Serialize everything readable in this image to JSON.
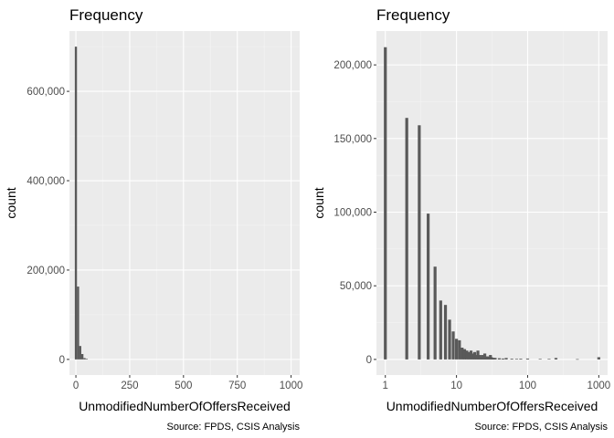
{
  "chart_data": [
    {
      "type": "bar",
      "title": "Frequency",
      "xlabel": "UnmodifiedNumberOfOffersReceived",
      "ylabel": "count",
      "caption": "Source: FPDS, CSIS Analysis",
      "x_scale": "linear",
      "xlim": [
        -30,
        1040
      ],
      "ylim": [
        -35000,
        735000
      ],
      "xticks": [
        0,
        250,
        500,
        750,
        1000
      ],
      "xtick_labels": [
        "0",
        "250",
        "500",
        "750",
        "1000"
      ],
      "yticks": [
        0,
        200000,
        400000,
        600000
      ],
      "ytick_labels": [
        "0",
        "200,000",
        "400,000",
        "600,000"
      ],
      "grid": true,
      "bin_width": 10,
      "x": [
        0,
        10,
        20,
        30,
        40,
        50
      ],
      "values": [
        700000,
        163000,
        30000,
        12000,
        3000,
        1000
      ]
    },
    {
      "type": "bar",
      "title": "Frequency",
      "xlabel": "UnmodifiedNumberOfOffersReceived",
      "ylabel": "count",
      "caption": "Source: FPDS, CSIS Analysis",
      "x_scale": "log",
      "xlim": [
        0.75,
        1330
      ],
      "ylim": [
        -10600,
        223000
      ],
      "xticks": [
        1,
        10,
        100,
        1000
      ],
      "xtick_labels": [
        "1",
        "10",
        "100",
        "1000"
      ],
      "yticks": [
        0,
        50000,
        100000,
        150000,
        200000
      ],
      "ytick_labels": [
        "0",
        "50,000",
        "100,000",
        "150,000",
        "200,000"
      ],
      "grid": true,
      "x": [
        1,
        2,
        3,
        4,
        5,
        6,
        7,
        8,
        9,
        10,
        11,
        12,
        13,
        14,
        15,
        16,
        17,
        18,
        19,
        20,
        21,
        22,
        23,
        24,
        25,
        26,
        27,
        28,
        29,
        30,
        31,
        32,
        33,
        34,
        35,
        40,
        45,
        50,
        60,
        70,
        80,
        100,
        150,
        200,
        250,
        500,
        1000
      ],
      "values": [
        212000,
        164000,
        159000,
        99000,
        63000,
        40000,
        37000,
        27000,
        19000,
        14000,
        13000,
        8000,
        7000,
        6000,
        5000,
        6000,
        4000,
        5000,
        3000,
        6000,
        3000,
        2000,
        3000,
        2000,
        4000,
        2000,
        2000,
        2000,
        1500,
        3000,
        1500,
        1000,
        1000,
        1000,
        1000,
        800,
        600,
        1000,
        500,
        400,
        500,
        600,
        300,
        300,
        1000,
        200,
        1500
      ]
    }
  ]
}
